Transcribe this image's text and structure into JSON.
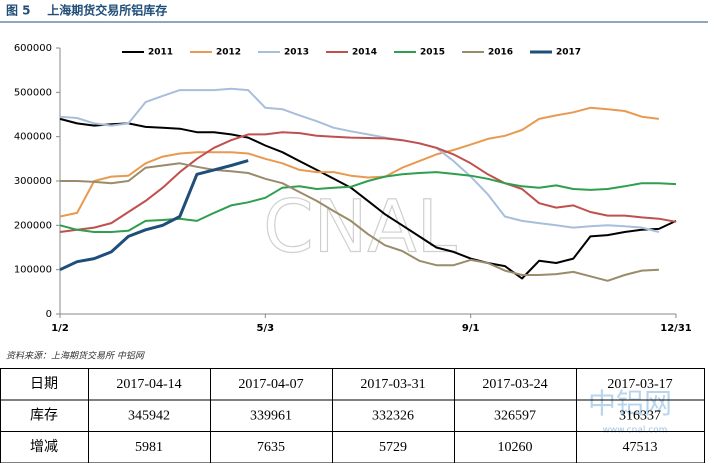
{
  "chart_data": {
    "type": "line",
    "title": "图 5    上海期货交易所铝库存",
    "categories": [
      "1/2",
      null,
      null,
      null,
      null,
      null,
      null,
      null,
      null,
      null,
      null,
      null,
      "5/3",
      null,
      null,
      null,
      null,
      null,
      null,
      null,
      null,
      null,
      null,
      null,
      "9/1",
      null,
      null,
      null,
      null,
      null,
      null,
      null,
      null,
      null,
      null,
      null,
      "12/31"
    ],
    "ylim": [
      0,
      600000
    ],
    "yticks": [
      0,
      100000,
      200000,
      300000,
      400000,
      500000,
      600000
    ],
    "series": [
      {
        "name": "2011",
        "color": "#000000",
        "values": [
          440000,
          430000,
          425000,
          428000,
          430000,
          422000,
          420000,
          418000,
          410000,
          410000,
          405000,
          398000,
          380000,
          365000,
          345000,
          325000,
          305000,
          285000,
          255000,
          225000,
          200000,
          175000,
          150000,
          140000,
          125000,
          115000,
          108000,
          80000,
          120000,
          115000,
          125000,
          175000,
          178000,
          185000,
          190000,
          192000,
          210000
        ]
      },
      {
        "name": "2012",
        "color": "#e89a50",
        "values": [
          220000,
          228000,
          300000,
          310000,
          312000,
          340000,
          355000,
          362000,
          365000,
          365000,
          365000,
          362000,
          350000,
          340000,
          325000,
          320000,
          320000,
          312000,
          308000,
          310000,
          330000,
          345000,
          360000,
          370000,
          382000,
          395000,
          402000,
          415000,
          440000,
          448000,
          455000,
          465000,
          462000,
          458000,
          445000,
          440000,
          null
        ]
      },
      {
        "name": "2013",
        "color": "#a7bfdc",
        "values": [
          445000,
          442000,
          430000,
          425000,
          430000,
          478000,
          492000,
          505000,
          505000,
          505000,
          508000,
          505000,
          465000,
          462000,
          448000,
          435000,
          420000,
          412000,
          405000,
          398000,
          392000,
          385000,
          375000,
          345000,
          310000,
          270000,
          220000,
          210000,
          205000,
          200000,
          195000,
          198000,
          200000,
          198000,
          195000,
          185000,
          null
        ]
      },
      {
        "name": "2014",
        "color": "#c0504d",
        "values": [
          185000,
          190000,
          195000,
          205000,
          230000,
          255000,
          285000,
          320000,
          350000,
          375000,
          392000,
          405000,
          405000,
          410000,
          408000,
          402000,
          400000,
          398000,
          397000,
          396000,
          392000,
          385000,
          375000,
          360000,
          340000,
          315000,
          295000,
          282000,
          250000,
          240000,
          245000,
          230000,
          222000,
          222000,
          218000,
          215000,
          208000
        ]
      },
      {
        "name": "2015",
        "color": "#2e9e4f",
        "values": [
          200000,
          190000,
          185000,
          185000,
          188000,
          210000,
          212000,
          215000,
          210000,
          228000,
          245000,
          252000,
          262000,
          285000,
          288000,
          282000,
          285000,
          287000,
          300000,
          310000,
          315000,
          318000,
          320000,
          316000,
          312000,
          305000,
          295000,
          288000,
          285000,
          290000,
          282000,
          280000,
          282000,
          288000,
          295000,
          295000,
          293000
        ]
      },
      {
        "name": "2016",
        "color": "#9a8c6a",
        "values": [
          300000,
          300000,
          298000,
          295000,
          300000,
          330000,
          335000,
          340000,
          332000,
          325000,
          322000,
          318000,
          305000,
          295000,
          275000,
          255000,
          232000,
          210000,
          180000,
          155000,
          142000,
          120000,
          110000,
          110000,
          122000,
          115000,
          98000,
          88000,
          88000,
          90000,
          95000,
          85000,
          75000,
          88000,
          98000,
          100000,
          null
        ]
      },
      {
        "name": "2017",
        "color": "#1f4e79",
        "values": [
          100000,
          118000,
          125000,
          140000,
          175000,
          190000,
          200000,
          220000,
          315000,
          325000,
          335000,
          345942,
          null,
          null,
          null,
          null,
          null,
          null,
          null,
          null,
          null,
          null,
          null,
          null,
          null,
          null,
          null,
          null,
          null,
          null,
          null,
          null,
          null,
          null,
          null,
          null,
          null
        ]
      }
    ],
    "source": "资料来源：上海期货交易所  中铝网",
    "watermarks": [
      "CNAL",
      "中铝网",
      "www.cnal.com"
    ]
  },
  "table": {
    "rows": [
      [
        "日期",
        "2017-04-14",
        "2017-04-07",
        "2017-03-31",
        "2017-03-24",
        "2017-03-17"
      ],
      [
        "库存",
        345942,
        339961,
        332326,
        326597,
        316337
      ],
      [
        "增减",
        5981,
        7635,
        5729,
        10260,
        47513
      ]
    ]
  }
}
